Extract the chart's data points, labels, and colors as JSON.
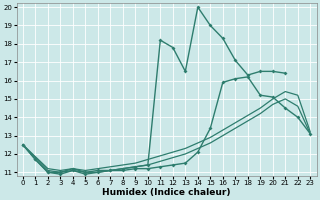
{
  "xlabel": "Humidex (Indice chaleur)",
  "xlim": [
    -0.5,
    23.5
  ],
  "ylim": [
    10.8,
    20.2
  ],
  "yticks": [
    11,
    12,
    13,
    14,
    15,
    16,
    17,
    18,
    19,
    20
  ],
  "xticks": [
    0,
    1,
    2,
    3,
    4,
    5,
    6,
    7,
    8,
    9,
    10,
    11,
    12,
    13,
    14,
    15,
    16,
    17,
    18,
    19,
    20,
    21,
    22,
    23
  ],
  "bg_color": "#cce8e8",
  "grid_color": "#ffffff",
  "line_color": "#2e7d6e",
  "line1": {
    "x": [
      0,
      1,
      2,
      3,
      4,
      5,
      6,
      7,
      8,
      9,
      10,
      11,
      12,
      13,
      14,
      15,
      16,
      17,
      18,
      19,
      20,
      21
    ],
    "y": [
      12.5,
      11.7,
      11.0,
      11.0,
      11.2,
      11.0,
      11.1,
      11.1,
      11.2,
      11.3,
      11.4,
      18.2,
      17.8,
      16.5,
      20.0,
      19.0,
      18.3,
      17.1,
      16.3,
      16.5,
      16.5,
      16.4
    ]
  },
  "line2": {
    "x": [
      0,
      1,
      2,
      3,
      4,
      5,
      6,
      7,
      8,
      9,
      10,
      11,
      12,
      13,
      14,
      15,
      16,
      17,
      18,
      19,
      20,
      21,
      22,
      23
    ],
    "y": [
      12.5,
      11.7,
      11.0,
      10.9,
      11.1,
      10.9,
      11.0,
      11.1,
      11.1,
      11.2,
      11.2,
      11.3,
      11.4,
      11.5,
      12.1,
      13.4,
      15.9,
      16.1,
      16.2,
      15.2,
      15.1,
      14.5,
      14.0,
      13.1
    ]
  },
  "line3": {
    "x": [
      0,
      2,
      3,
      4,
      5,
      6,
      7,
      8,
      9,
      10,
      11,
      12,
      13,
      14,
      15,
      16,
      17,
      18,
      19,
      20,
      21,
      22,
      23
    ],
    "y": [
      12.5,
      11.2,
      11.1,
      11.2,
      11.1,
      11.2,
      11.3,
      11.4,
      11.5,
      11.7,
      11.9,
      12.1,
      12.3,
      12.6,
      12.9,
      13.3,
      13.7,
      14.1,
      14.5,
      15.0,
      15.4,
      15.2,
      13.2
    ]
  },
  "line4": {
    "x": [
      0,
      2,
      3,
      4,
      5,
      6,
      7,
      8,
      9,
      10,
      11,
      12,
      13,
      14,
      15,
      16,
      17,
      18,
      19,
      20,
      21,
      22,
      23
    ],
    "y": [
      12.5,
      11.1,
      11.0,
      11.1,
      11.0,
      11.0,
      11.1,
      11.2,
      11.3,
      11.4,
      11.6,
      11.8,
      12.0,
      12.3,
      12.6,
      13.0,
      13.4,
      13.8,
      14.2,
      14.7,
      15.0,
      14.6,
      13.1
    ]
  }
}
